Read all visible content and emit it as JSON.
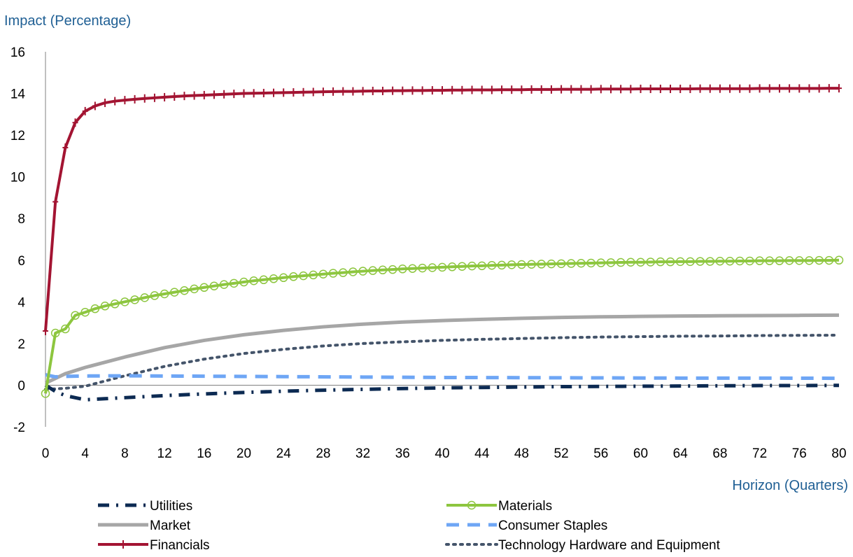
{
  "chart_data": {
    "type": "line",
    "ylabel": "Impact (Percentage)",
    "xlabel": "Horizon (Quarters)",
    "xlim": [
      0,
      80
    ],
    "ylim": [
      -2,
      16
    ],
    "x_ticks": [
      "0",
      "4",
      "8",
      "12",
      "16",
      "20",
      "24",
      "28",
      "32",
      "36",
      "40",
      "44",
      "48",
      "52",
      "56",
      "60",
      "64",
      "68",
      "72",
      "76",
      "80"
    ],
    "y_ticks": [
      "-2",
      "0",
      "2",
      "4",
      "6",
      "8",
      "10",
      "12",
      "14",
      "16"
    ],
    "legend_position": "bottom",
    "series": [
      {
        "name": "Utilities",
        "color": "#0c2a52",
        "style": "dash-dot",
        "marker": "none",
        "x": [
          0,
          1,
          2,
          3,
          4,
          6,
          8,
          12,
          16,
          20,
          24,
          28,
          32,
          36,
          40,
          44,
          48,
          52,
          56,
          60,
          64,
          68,
          72,
          76,
          80
        ],
        "y": [
          0.0,
          -0.3,
          -0.5,
          -0.6,
          -0.7,
          -0.65,
          -0.6,
          -0.5,
          -0.42,
          -0.35,
          -0.29,
          -0.24,
          -0.2,
          -0.16,
          -0.13,
          -0.11,
          -0.09,
          -0.07,
          -0.06,
          -0.05,
          -0.04,
          -0.03,
          -0.02,
          -0.02,
          -0.01
        ]
      },
      {
        "name": "Materials",
        "color": "#8dc63f",
        "style": "solid",
        "marker": "circle",
        "x": [
          0,
          1,
          2,
          3,
          4,
          5,
          6,
          7,
          8,
          9,
          10,
          11,
          12,
          13,
          14,
          15,
          16,
          17,
          18,
          19,
          20,
          21,
          22,
          23,
          24,
          25,
          26,
          27,
          28,
          29,
          30,
          31,
          32,
          33,
          34,
          35,
          36,
          37,
          38,
          39,
          40,
          41,
          42,
          43,
          44,
          45,
          46,
          47,
          48,
          49,
          50,
          51,
          52,
          53,
          54,
          55,
          56,
          57,
          58,
          59,
          60,
          61,
          62,
          63,
          64,
          65,
          66,
          67,
          68,
          69,
          70,
          71,
          72,
          73,
          74,
          75,
          76,
          77,
          78,
          79,
          80
        ],
        "y": [
          -0.4,
          2.5,
          2.7,
          3.35,
          3.5,
          3.67,
          3.8,
          3.9,
          4.0,
          4.1,
          4.2,
          4.3,
          4.38,
          4.46,
          4.54,
          4.62,
          4.69,
          4.76,
          4.83,
          4.89,
          4.95,
          5.01,
          5.06,
          5.11,
          5.16,
          5.21,
          5.25,
          5.29,
          5.33,
          5.37,
          5.4,
          5.44,
          5.47,
          5.5,
          5.53,
          5.55,
          5.58,
          5.6,
          5.62,
          5.64,
          5.66,
          5.68,
          5.7,
          5.72,
          5.73,
          5.75,
          5.76,
          5.78,
          5.79,
          5.8,
          5.81,
          5.82,
          5.83,
          5.84,
          5.85,
          5.86,
          5.87,
          5.88,
          5.89,
          5.9,
          5.9,
          5.91,
          5.92,
          5.92,
          5.93,
          5.93,
          5.94,
          5.94,
          5.95,
          5.95,
          5.96,
          5.96,
          5.97,
          5.97,
          5.97,
          5.98,
          5.98,
          5.98,
          5.99,
          5.99,
          6.0
        ]
      },
      {
        "name": "Market",
        "color": "#a6a6a6",
        "style": "solid",
        "marker": "none",
        "x": [
          0,
          2,
          4,
          6,
          8,
          12,
          16,
          20,
          24,
          28,
          32,
          36,
          40,
          44,
          48,
          52,
          56,
          60,
          64,
          68,
          72,
          76,
          80
        ],
        "y": [
          0.1,
          0.55,
          0.85,
          1.1,
          1.35,
          1.8,
          2.15,
          2.42,
          2.63,
          2.8,
          2.93,
          3.03,
          3.1,
          3.16,
          3.21,
          3.25,
          3.28,
          3.3,
          3.32,
          3.33,
          3.34,
          3.35,
          3.36
        ]
      },
      {
        "name": "Consumer Staples",
        "color": "#6ea6f5",
        "style": "dashed",
        "marker": "none",
        "x": [
          0,
          1,
          2,
          4,
          8,
          16,
          24,
          32,
          40,
          48,
          56,
          64,
          72,
          80
        ],
        "y": [
          0.5,
          0.4,
          0.42,
          0.44,
          0.45,
          0.43,
          0.41,
          0.39,
          0.37,
          0.36,
          0.35,
          0.34,
          0.34,
          0.33
        ]
      },
      {
        "name": "Financials",
        "color": "#a31432",
        "style": "solid",
        "marker": "plus",
        "x": [
          0,
          1,
          2,
          3,
          4,
          5,
          6,
          7,
          8,
          9,
          10,
          11,
          12,
          13,
          14,
          15,
          16,
          17,
          18,
          19,
          20,
          21,
          22,
          23,
          24,
          25,
          26,
          27,
          28,
          29,
          30,
          31,
          32,
          33,
          34,
          35,
          36,
          37,
          38,
          39,
          40,
          41,
          42,
          43,
          44,
          45,
          46,
          47,
          48,
          49,
          50,
          51,
          52,
          53,
          54,
          55,
          56,
          57,
          58,
          59,
          60,
          61,
          62,
          63,
          64,
          65,
          66,
          67,
          68,
          69,
          70,
          71,
          72,
          73,
          74,
          75,
          76,
          77,
          78,
          79,
          80
        ],
        "y": [
          2.6,
          8.8,
          11.4,
          12.6,
          13.15,
          13.4,
          13.55,
          13.63,
          13.68,
          13.72,
          13.76,
          13.79,
          13.82,
          13.85,
          13.88,
          13.9,
          13.92,
          13.94,
          13.96,
          13.98,
          14.0,
          14.01,
          14.02,
          14.03,
          14.04,
          14.05,
          14.06,
          14.07,
          14.08,
          14.09,
          14.1,
          14.1,
          14.11,
          14.12,
          14.12,
          14.13,
          14.13,
          14.14,
          14.14,
          14.15,
          14.15,
          14.16,
          14.16,
          14.17,
          14.17,
          14.17,
          14.18,
          14.18,
          14.18,
          14.19,
          14.19,
          14.19,
          14.2,
          14.2,
          14.2,
          14.2,
          14.21,
          14.21,
          14.21,
          14.21,
          14.22,
          14.22,
          14.22,
          14.22,
          14.22,
          14.22,
          14.23,
          14.23,
          14.23,
          14.23,
          14.23,
          14.23,
          14.24,
          14.24,
          14.24,
          14.24,
          14.24,
          14.24,
          14.24,
          14.25,
          14.25
        ]
      },
      {
        "name": "Technology Hardware and Equipment",
        "color": "#44546a",
        "style": "dotted",
        "marker": "none",
        "x": [
          0,
          2,
          4,
          6,
          8,
          12,
          16,
          20,
          24,
          28,
          32,
          36,
          40,
          44,
          48,
          52,
          56,
          60,
          64,
          68,
          72,
          76,
          80
        ],
        "y": [
          -0.2,
          -0.15,
          -0.05,
          0.2,
          0.45,
          0.9,
          1.25,
          1.52,
          1.72,
          1.88,
          2.0,
          2.08,
          2.15,
          2.2,
          2.24,
          2.28,
          2.31,
          2.33,
          2.35,
          2.36,
          2.38,
          2.39,
          2.4
        ]
      }
    ]
  }
}
